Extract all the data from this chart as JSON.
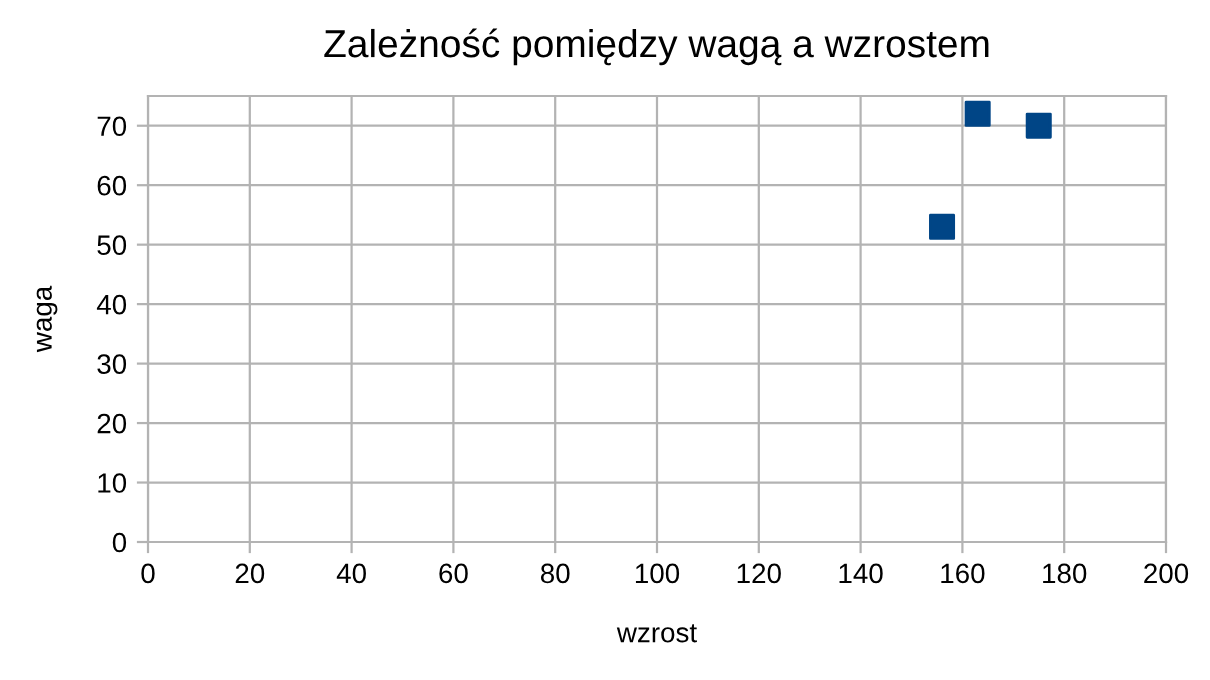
{
  "chart_data": {
    "type": "scatter",
    "title": "Zależność pomiędzy wagą a wzrostem",
    "xlabel": "wzrost",
    "ylabel": "waga",
    "x": [
      156,
      163,
      175
    ],
    "values": [
      53,
      72,
      70
    ],
    "color": "#004586",
    "xlim": [
      0,
      200
    ],
    "xticks": [
      0,
      20,
      40,
      60,
      80,
      100,
      120,
      140,
      160,
      180,
      200
    ],
    "ylim": [
      0,
      75
    ],
    "yticks": [
      0,
      10,
      20,
      30,
      40,
      50,
      60,
      70
    ],
    "grid": true,
    "marker": "square"
  }
}
